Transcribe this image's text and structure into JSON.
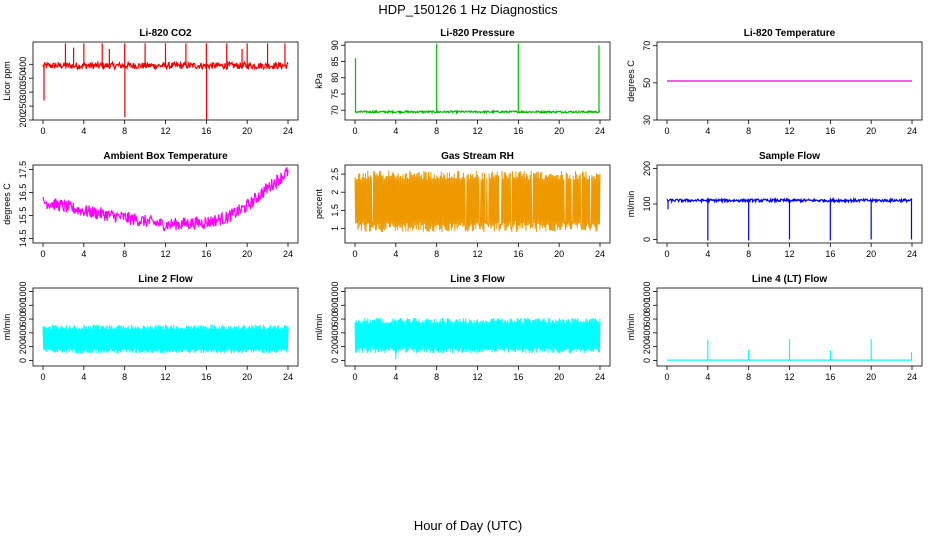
{
  "figure": {
    "title": "HDP_150126  1 Hz Diagnostics",
    "xlabel": "Hour of Day (UTC)"
  },
  "chart_data": [
    {
      "id": "co2",
      "type": "line",
      "title": "Li-820 CO2",
      "ylabel": "Licor ppm",
      "color": "#ee0000",
      "xlim": [
        0,
        24
      ],
      "xticks": [
        0,
        4,
        8,
        12,
        16,
        20,
        24
      ],
      "ylim": [
        200,
        480
      ],
      "yticks": [
        200,
        250,
        300,
        350,
        400
      ],
      "baseline": 395,
      "noise": 12,
      "spikes": [
        {
          "x": 0.1,
          "y": 270
        },
        {
          "x": 2.2,
          "y": 475
        },
        {
          "x": 3.0,
          "y": 460
        },
        {
          "x": 4.0,
          "y": 475
        },
        {
          "x": 5.8,
          "y": 475
        },
        {
          "x": 6.5,
          "y": 455
        },
        {
          "x": 8.0,
          "y": 475
        },
        {
          "x": 8.02,
          "y": 210
        },
        {
          "x": 10.0,
          "y": 475
        },
        {
          "x": 12.0,
          "y": 475
        },
        {
          "x": 14.0,
          "y": 475
        },
        {
          "x": 16.0,
          "y": 475
        },
        {
          "x": 16.02,
          "y": 200
        },
        {
          "x": 18.0,
          "y": 475
        },
        {
          "x": 19.5,
          "y": 455
        },
        {
          "x": 20.0,
          "y": 475
        },
        {
          "x": 22.0,
          "y": 475
        },
        {
          "x": 23.7,
          "y": 475
        }
      ]
    },
    {
      "id": "pressure",
      "type": "line",
      "title": "Li-820 Pressure",
      "ylabel": "kPa",
      "color": "#00bb00",
      "xlim": [
        0,
        24
      ],
      "xticks": [
        0,
        4,
        8,
        12,
        16,
        20,
        24
      ],
      "ylim": [
        67,
        91
      ],
      "yticks": [
        70,
        75,
        80,
        85,
        90
      ],
      "baseline": 69.5,
      "noise": 0.3,
      "spikes": [
        {
          "x": 0.05,
          "y": 86
        },
        {
          "x": 8.0,
          "y": 90.5
        },
        {
          "x": 16.0,
          "y": 90.5
        },
        {
          "x": 23.9,
          "y": 90
        }
      ]
    },
    {
      "id": "temperature",
      "type": "line",
      "title": "Li-820 Temperature",
      "ylabel": "degrees C",
      "color": "#dd00dd",
      "xlim": [
        0,
        24
      ],
      "xticks": [
        0,
        4,
        8,
        12,
        16,
        20,
        24
      ],
      "ylim": [
        30,
        72
      ],
      "yticks": [
        30,
        50,
        70
      ],
      "baseline": 51,
      "noise": 0,
      "spikes": []
    },
    {
      "id": "ambient",
      "type": "line",
      "title": "Ambient Box Temperature",
      "ylabel": "degrees C",
      "color": "#ff00ff",
      "xlim": [
        0,
        24
      ],
      "xticks": [
        0,
        4,
        8,
        12,
        16,
        20,
        24
      ],
      "ylim": [
        14.3,
        17.7
      ],
      "yticks": [
        14.5,
        15.5,
        16.5,
        17.5
      ],
      "trend": [
        [
          0,
          16.1
        ],
        [
          4,
          15.7
        ],
        [
          8,
          15.4
        ],
        [
          12,
          15.1
        ],
        [
          16,
          15.2
        ],
        [
          18,
          15.4
        ],
        [
          20,
          15.9
        ],
        [
          22,
          16.7
        ],
        [
          24,
          17.4
        ]
      ],
      "noise": 0.28,
      "spikes": []
    },
    {
      "id": "rh",
      "type": "line",
      "title": "Gas Stream RH",
      "ylabel": "percent",
      "color": "#ee9900",
      "xlim": [
        0,
        24
      ],
      "xticks": [
        0,
        4,
        8,
        12,
        16,
        20,
        24
      ],
      "ylim": [
        0.6,
        2.75
      ],
      "yticks": [
        1.0,
        1.5,
        2.0,
        2.5
      ],
      "band": [
        0.9,
        2.6
      ],
      "spikes": []
    },
    {
      "id": "sample",
      "type": "line",
      "title": "Sample Flow",
      "ylabel": "ml/min",
      "color": "#0000ee",
      "xlim": [
        0,
        24
      ],
      "xticks": [
        0,
        4,
        8,
        12,
        16,
        20,
        24
      ],
      "ylim": [
        -10,
        210
      ],
      "yticks": [
        0,
        100,
        200
      ],
      "baseline": 110,
      "noise": 4,
      "spikes": [
        {
          "x": 0.1,
          "y": 85
        },
        {
          "x": 4.0,
          "y": -3
        },
        {
          "x": 8.0,
          "y": -3
        },
        {
          "x": 12.0,
          "y": 0
        },
        {
          "x": 16.0,
          "y": -3
        },
        {
          "x": 20.0,
          "y": 0
        },
        {
          "x": 23.95,
          "y": 0
        }
      ]
    },
    {
      "id": "line2",
      "type": "line",
      "title": "Line 2 Flow",
      "ylabel": "ml/min",
      "color": "#00ffff",
      "xlim": [
        0,
        24
      ],
      "xticks": [
        0,
        4,
        8,
        12,
        16,
        20,
        24
      ],
      "ylim": [
        -80,
        1050
      ],
      "yticks": [
        0,
        200,
        400,
        600,
        800,
        1000
      ],
      "band": [
        100,
        520
      ],
      "spikes": []
    },
    {
      "id": "line3",
      "type": "line",
      "title": "Line 3 Flow",
      "ylabel": "ml/min",
      "color": "#00ffff",
      "xlim": [
        0,
        24
      ],
      "xticks": [
        0,
        4,
        8,
        12,
        16,
        20,
        24
      ],
      "ylim": [
        -80,
        1050
      ],
      "yticks": [
        0,
        200,
        400,
        600,
        800,
        1000
      ],
      "band": [
        100,
        620
      ],
      "spikes": [
        {
          "x": 4.0,
          "y": 20
        }
      ]
    },
    {
      "id": "line4",
      "type": "line",
      "title": "Line 4 (LT) Flow",
      "ylabel": "ml/min",
      "color": "#00ffff",
      "xlim": [
        0,
        24
      ],
      "xticks": [
        0,
        4,
        8,
        12,
        16,
        20,
        24
      ],
      "ylim": [
        -80,
        1050
      ],
      "yticks": [
        0,
        200,
        400,
        600,
        800,
        1000
      ],
      "baseline": 5,
      "noise": 0,
      "spikes": [
        {
          "x": 4.0,
          "y": 300
        },
        {
          "x": 8.0,
          "y": 150
        },
        {
          "x": 12.0,
          "y": 310
        },
        {
          "x": 16.0,
          "y": 150
        },
        {
          "x": 20.0,
          "y": 310
        },
        {
          "x": 23.95,
          "y": 120
        }
      ]
    }
  ]
}
